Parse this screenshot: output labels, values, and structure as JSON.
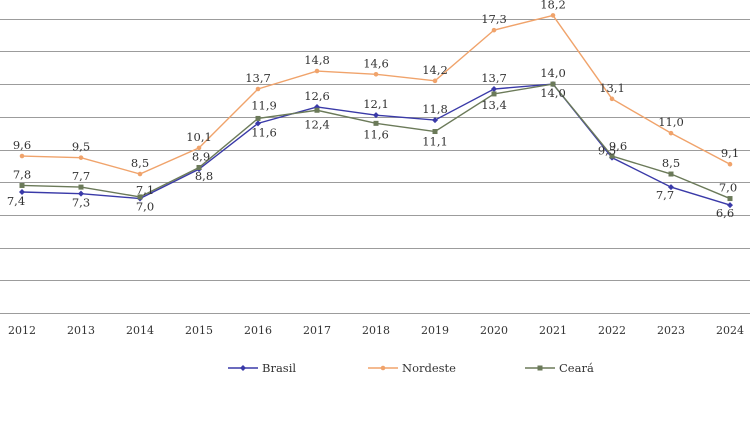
{
  "chart_data": {
    "type": "line",
    "title": "",
    "xlabel": "",
    "ylabel": "",
    "categories": [
      "2012",
      "2013",
      "2014",
      "2015",
      "2016",
      "2017",
      "2018",
      "2019",
      "2020",
      "2021",
      "2022",
      "2023",
      "2024"
    ],
    "ylim": [
      0,
      20
    ],
    "grid": true,
    "legend_position": "bottom",
    "series": [
      {
        "name": "Brasil",
        "color": "#3a3aa8",
        "marker": "diamond",
        "values": [
          7.4,
          7.3,
          7.0,
          8.8,
          11.6,
          12.6,
          12.1,
          11.8,
          13.7,
          14.0,
          9.5,
          7.7,
          6.6
        ],
        "labels": [
          "7,4",
          "7,3",
          "7,0",
          "8,8",
          "11,6",
          "12,6",
          "12,1",
          "11,8",
          "13,7",
          "14,0",
          "9,5",
          "7,7",
          "6,6"
        ]
      },
      {
        "name": "Nordeste",
        "color": "#f0a36b",
        "marker": "circle",
        "values": [
          9.6,
          9.5,
          8.5,
          10.1,
          13.7,
          14.8,
          14.6,
          14.2,
          17.3,
          18.2,
          13.1,
          11.0,
          9.1
        ],
        "labels": [
          "9,6",
          "9,5",
          "8,5",
          "10,1",
          "13,7",
          "14,8",
          "14,6",
          "14,2",
          "17,3",
          "18,2",
          "13,1",
          "11,0",
          "9,1"
        ]
      },
      {
        "name": "Ceará",
        "color": "#6b7a59",
        "marker": "square",
        "values": [
          7.8,
          7.7,
          7.1,
          8.9,
          11.9,
          12.4,
          11.6,
          11.1,
          13.4,
          14.0,
          9.6,
          8.5,
          7.0
        ],
        "labels": [
          "7,8",
          "7,7",
          "7,1",
          "8,9",
          "11,9",
          "12,4",
          "11,6",
          "11,1",
          "13,4",
          "14,0",
          "9,6",
          "8,5",
          "7,0"
        ]
      }
    ]
  }
}
